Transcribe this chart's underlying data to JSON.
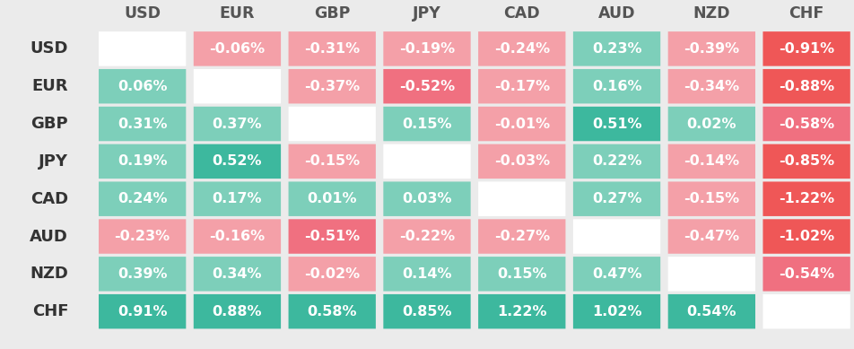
{
  "currencies": [
    "USD",
    "EUR",
    "GBP",
    "JPY",
    "CAD",
    "AUD",
    "NZD",
    "CHF"
  ],
  "values": [
    [
      null,
      -0.06,
      -0.31,
      -0.19,
      -0.24,
      0.23,
      -0.39,
      -0.91
    ],
    [
      0.06,
      null,
      -0.37,
      -0.52,
      -0.17,
      0.16,
      -0.34,
      -0.88
    ],
    [
      0.31,
      0.37,
      null,
      0.15,
      -0.01,
      0.51,
      0.02,
      -0.58
    ],
    [
      0.19,
      0.52,
      -0.15,
      null,
      -0.03,
      0.22,
      -0.14,
      -0.85
    ],
    [
      0.24,
      0.17,
      0.01,
      0.03,
      null,
      0.27,
      -0.15,
      -1.22
    ],
    [
      -0.23,
      -0.16,
      -0.51,
      -0.22,
      -0.27,
      null,
      -0.47,
      -1.02
    ],
    [
      0.39,
      0.34,
      -0.02,
      0.14,
      0.15,
      0.47,
      null,
      -0.54
    ],
    [
      0.91,
      0.88,
      0.58,
      0.85,
      1.22,
      1.02,
      0.54,
      null
    ]
  ],
  "color_positive_light": "#7DCFBA",
  "color_positive_dark": "#3DB89E",
  "color_negative_light": "#F4A0A8",
  "color_negative_medium": "#F07080",
  "color_negative_dark": "#EF5757",
  "color_diagonal": "#FFFFFF",
  "color_background": "#EBEBEB",
  "color_header_text": "#555555",
  "color_row_label": "#333333",
  "color_cell_text": "#FFFFFF",
  "threshold_dark_positive": 0.5,
  "threshold_medium_negative": -0.5,
  "threshold_dark_negative": -0.85,
  "cell_fontsize": 11.5,
  "header_fontsize": 12.5,
  "row_label_fontsize": 13
}
